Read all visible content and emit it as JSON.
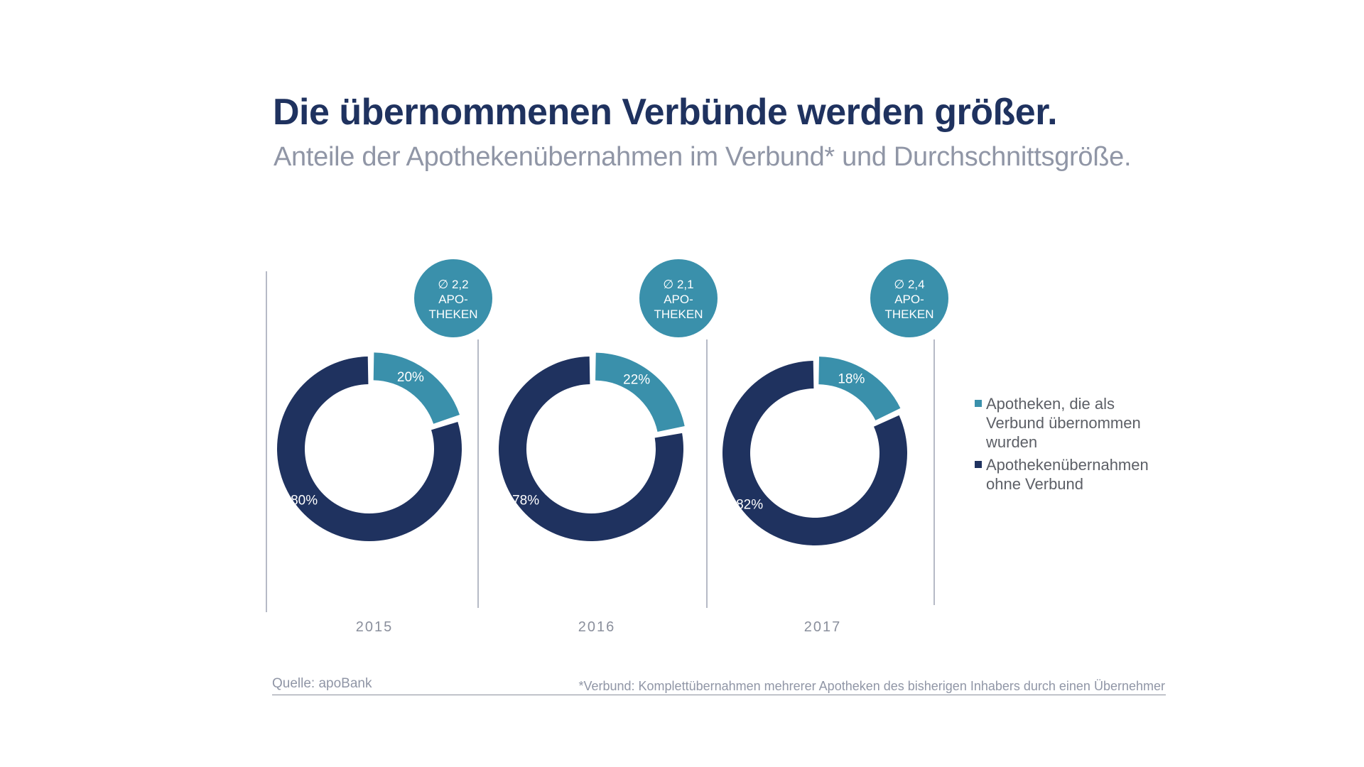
{
  "header": {
    "title": "Die übernommenen Verbünde werden größer.",
    "subtitle": "Anteile der Apothekenübernahmen im Verbund* und Durchschnittsgröße."
  },
  "colors": {
    "verbund": "#3a90ab",
    "ohne_verbund": "#1f325f",
    "bubble": "#3a90ab",
    "divider": "#9ea3b4"
  },
  "chart_data": {
    "type": "pie",
    "subtype": "donut",
    "title": "Die übernommenen Verbünde werden größer.",
    "subtitle": "Anteile der Apothekenübernahmen im Verbund* und Durchschnittsgröße.",
    "legend_position": "right",
    "series_names": [
      "Apotheken, die als Verbund übernommen wurden",
      "Apothekenübernahmen ohne Verbund"
    ],
    "charts": [
      {
        "year": "2015",
        "slices": [
          {
            "name": "Apotheken, die als Verbund übernommen wurden",
            "value": 20,
            "label": "20%"
          },
          {
            "name": "Apothekenübernahmen ohne Verbund",
            "value": 80,
            "label": "80%"
          }
        ],
        "average": {
          "symbol": "∅",
          "value": "2,2",
          "line1": "APO-",
          "line2": "THEKEN"
        }
      },
      {
        "year": "2016",
        "slices": [
          {
            "name": "Apotheken, die als Verbund übernommen wurden",
            "value": 22,
            "label": "22%"
          },
          {
            "name": "Apothekenübernahmen ohne Verbund",
            "value": 78,
            "label": "78%"
          }
        ],
        "average": {
          "symbol": "∅",
          "value": "2,1",
          "line1": "APO-",
          "line2": "THEKEN"
        }
      },
      {
        "year": "2017",
        "slices": [
          {
            "name": "Apotheken, die als Verbund übernommen wurden",
            "value": 18,
            "label": "18%"
          },
          {
            "name": "Apothekenübernahmen ohne Verbund",
            "value": 82,
            "label": "82%"
          }
        ],
        "average": {
          "symbol": "∅",
          "value": "2,4",
          "line1": "APO-",
          "line2": "THEKEN"
        }
      }
    ]
  },
  "legend": {
    "items": [
      {
        "label": "Apotheken, die als Verbund übernommen wurden",
        "lines": [
          "Apotheken, die als",
          "Verbund übernommen",
          "wurden"
        ]
      },
      {
        "label": "Apothekenübernahmen ohne Verbund",
        "lines": [
          "Apothekenübernahmen",
          "ohne Verbund"
        ]
      }
    ]
  },
  "years": [
    "2015",
    "2016",
    "2017"
  ],
  "footer": {
    "source": "Quelle: apoBank",
    "footnote": "*Verbund: Komplettübernahmen mehrerer Apotheken des bisherigen Inhabers durch einen Übernehmer"
  }
}
